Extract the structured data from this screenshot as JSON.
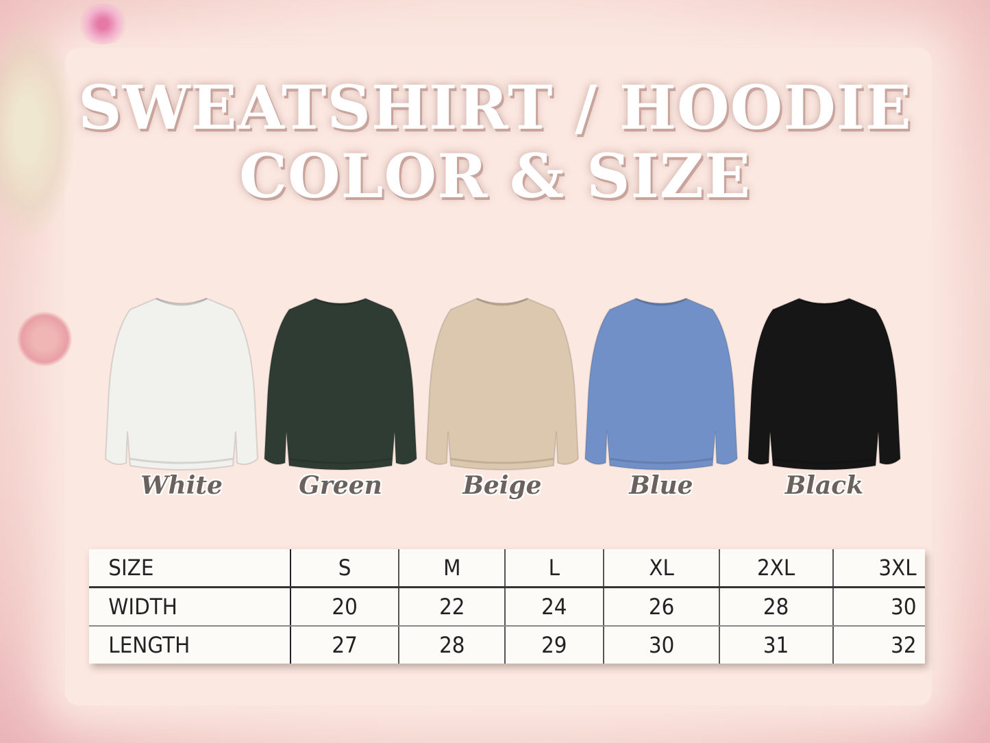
{
  "title": {
    "line1": "SWEATSHIRT / HOODIE",
    "line2": "COLOR & SIZE"
  },
  "colors": [
    {
      "name": "White",
      "hex": "#f1f1ee"
    },
    {
      "name": "Green",
      "hex": "#2f3c34"
    },
    {
      "name": "Beige",
      "hex": "#dcc8ae"
    },
    {
      "name": "Blue",
      "hex": "#7190c8"
    },
    {
      "name": "Black",
      "hex": "#161616"
    }
  ],
  "size_table": {
    "header": [
      "SIZE",
      "S",
      "M",
      "L",
      "XL",
      "2XL",
      "3XL"
    ],
    "rows": [
      [
        "WIDTH",
        "20",
        "22",
        "24",
        "26",
        "28",
        "30"
      ],
      [
        "LENGTH",
        "27",
        "28",
        "29",
        "30",
        "31",
        "32"
      ]
    ]
  }
}
